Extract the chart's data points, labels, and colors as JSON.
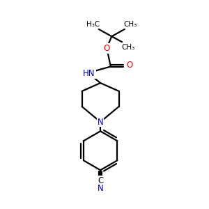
{
  "background_color": "#ffffff",
  "bond_color": "#000000",
  "nitrogen_color": "#0000cc",
  "oxygen_color": "#ff0000",
  "line_width": 1.6,
  "font_size_labels": 8.5,
  "font_size_methyl": 7.5,
  "xlim": [
    0,
    8
  ],
  "ylim": [
    0,
    10
  ]
}
